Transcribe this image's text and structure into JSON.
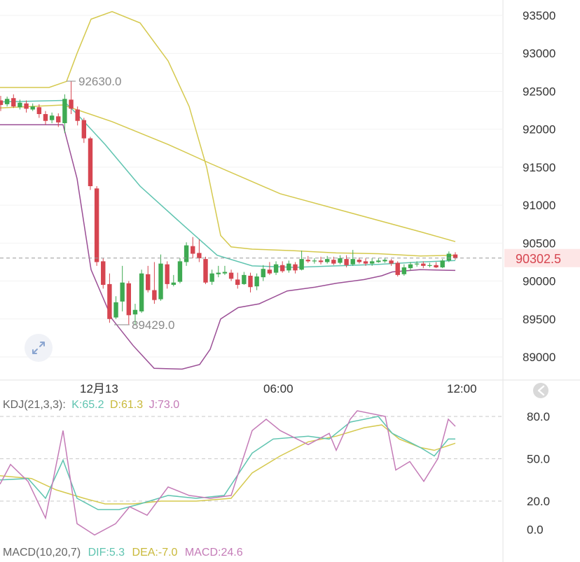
{
  "chart_data": {
    "type": "candlestick",
    "price_axis": {
      "ticks": [
        "93500",
        "93000",
        "92500",
        "92000",
        "91500",
        "91000",
        "90500",
        "90000",
        "89500",
        "89000"
      ],
      "range": [
        88800,
        93700
      ]
    },
    "time_axis": {
      "ticks": [
        "12月13",
        "06:00",
        "12:00"
      ]
    },
    "annotations": {
      "high": "92630.0",
      "low": "89429.0"
    },
    "current_price": {
      "label": "90302.5",
      "value": 90302.5
    },
    "colors": {
      "up": "#3eaa52",
      "down": "#d64550",
      "ma": "#5fc4b0",
      "bb": "#d5c94e",
      "bb_lower": "#9b4f96",
      "kdj_k": "#5fc4b0",
      "kdj_d": "#d5c94e",
      "kdj_j": "#c47bb7",
      "grid": "#c9c9c9"
    },
    "candles": [
      [
        92380,
        92320,
        92440,
        92240
      ],
      [
        92330,
        92400,
        92430,
        92300
      ],
      [
        92410,
        92300,
        92460,
        92280
      ],
      [
        92290,
        92350,
        92390,
        92260
      ],
      [
        92340,
        92270,
        92380,
        92220
      ],
      [
        92260,
        92300,
        92340,
        92240
      ],
      [
        92290,
        92200,
        92330,
        92150
      ],
      [
        92200,
        92110,
        92240,
        92060
      ],
      [
        92120,
        92180,
        92220,
        92080
      ],
      [
        92170,
        92090,
        92210,
        92030
      ],
      [
        92080,
        92400,
        92460,
        91950
      ],
      [
        92390,
        92270,
        92630,
        92200
      ],
      [
        92260,
        92110,
        92300,
        92050
      ],
      [
        92120,
        91880,
        92150,
        91820
      ],
      [
        91880,
        91250,
        91900,
        91200
      ],
      [
        91220,
        90250,
        91250,
        90200
      ],
      [
        90260,
        89950,
        90300,
        89900
      ],
      [
        89960,
        89500,
        90100,
        89450
      ],
      [
        89520,
        89720,
        89800,
        89500
      ],
      [
        89730,
        89980,
        90200,
        89600
      ],
      [
        89970,
        89550,
        90000,
        89430
      ],
      [
        89560,
        89620,
        89700,
        89429
      ],
      [
        89600,
        90100,
        90150,
        89580
      ],
      [
        90090,
        89880,
        90200,
        89850
      ],
      [
        89880,
        89750,
        90250,
        89700
      ],
      [
        89760,
        90230,
        90350,
        89740
      ],
      [
        90220,
        89960,
        90260,
        89900
      ],
      [
        89950,
        89980,
        90080,
        89930
      ],
      [
        89990,
        90260,
        90300,
        89970
      ],
      [
        90250,
        90470,
        90510,
        90200
      ],
      [
        90460,
        90360,
        90580,
        90300
      ],
      [
        90370,
        90300,
        90550,
        90250
      ],
      [
        90290,
        89980,
        90320,
        89960
      ],
      [
        89990,
        90100,
        90150,
        89950
      ],
      [
        90090,
        90110,
        90200,
        90050
      ],
      [
        90100,
        90120,
        90200,
        90080
      ],
      [
        90110,
        90030,
        90150,
        90000
      ],
      [
        90020,
        89950,
        90110,
        89900
      ],
      [
        89960,
        90080,
        90120,
        89950
      ],
      [
        90070,
        89920,
        90110,
        89850
      ],
      [
        89930,
        90060,
        90100,
        89880
      ],
      [
        90050,
        90160,
        90210,
        90000
      ],
      [
        90150,
        90100,
        90250,
        90080
      ],
      [
        90110,
        90220,
        90260,
        90080
      ],
      [
        90210,
        90130,
        90260,
        90110
      ],
      [
        90140,
        90230,
        90270,
        90110
      ],
      [
        90220,
        90140,
        90250,
        90100
      ],
      [
        90150,
        90290,
        90400,
        90140
      ],
      [
        90280,
        90260,
        90330,
        90240
      ],
      [
        90260,
        90270,
        90300,
        90230
      ],
      [
        90270,
        90250,
        90320,
        90220
      ],
      [
        90250,
        90290,
        90330,
        90230
      ],
      [
        90280,
        90230,
        90320,
        90210
      ],
      [
        90240,
        90300,
        90340,
        90220
      ],
      [
        90290,
        90210,
        90340,
        90180
      ],
      [
        90220,
        90290,
        90410,
        90200
      ],
      [
        90280,
        90250,
        90310,
        90230
      ],
      [
        90260,
        90230,
        90300,
        90200
      ],
      [
        90230,
        90260,
        90300,
        90200
      ],
      [
        90250,
        90270,
        90300,
        90240
      ],
      [
        90260,
        90280,
        90310,
        90240
      ],
      [
        90270,
        90230,
        90290,
        90200
      ],
      [
        90240,
        90080,
        90260,
        90060
      ],
      [
        90090,
        90180,
        90220,
        90070
      ],
      [
        90170,
        90220,
        90250,
        90140
      ],
      [
        90220,
        90230,
        90260,
        90190
      ],
      [
        90230,
        90200,
        90260,
        90170
      ],
      [
        90200,
        90210,
        90240,
        90180
      ],
      [
        90210,
        90180,
        90250,
        90170
      ],
      [
        90180,
        90270,
        90290,
        90170
      ],
      [
        90270,
        90360,
        90390,
        90250
      ],
      [
        90350,
        90302.5,
        90380,
        90280
      ]
    ],
    "ma": [
      [
        0,
        92360
      ],
      [
        90,
        92380
      ],
      [
        110,
        92200
      ],
      [
        150,
        91800
      ],
      [
        200,
        91250
      ],
      [
        260,
        90750
      ],
      [
        310,
        90340
      ],
      [
        360,
        90200
      ],
      [
        420,
        90180
      ],
      [
        480,
        90200
      ],
      [
        540,
        90220
      ],
      [
        600,
        90250
      ],
      [
        650,
        90270
      ]
    ],
    "bollinger_upper": [
      [
        0,
        92550
      ],
      [
        70,
        92550
      ],
      [
        95,
        92630
      ],
      [
        110,
        93000
      ],
      [
        130,
        93450
      ],
      [
        160,
        93550
      ],
      [
        200,
        93400
      ],
      [
        240,
        92900
      ],
      [
        270,
        92300
      ],
      [
        295,
        91500
      ],
      [
        315,
        90600
      ],
      [
        330,
        90450
      ],
      [
        360,
        90420
      ],
      [
        420,
        90400
      ],
      [
        480,
        90370
      ],
      [
        540,
        90360
      ],
      [
        600,
        90330
      ],
      [
        650,
        90340
      ]
    ],
    "bollinger_mid": [
      [
        0,
        92280
      ],
      [
        90,
        92320
      ],
      [
        160,
        92100
      ],
      [
        240,
        91800
      ],
      [
        300,
        91550
      ],
      [
        400,
        91150
      ],
      [
        500,
        90900
      ],
      [
        600,
        90650
      ],
      [
        650,
        90520
      ]
    ],
    "bollinger_lower": [
      [
        0,
        92060
      ],
      [
        90,
        92060
      ],
      [
        110,
        91350
      ],
      [
        130,
        90150
      ],
      [
        160,
        89500
      ],
      [
        190,
        89150
      ],
      [
        220,
        88850
      ],
      [
        260,
        88840
      ],
      [
        285,
        88900
      ],
      [
        300,
        89100
      ],
      [
        315,
        89500
      ],
      [
        340,
        89650
      ],
      [
        370,
        89700
      ],
      [
        410,
        89870
      ],
      [
        450,
        89920
      ],
      [
        480,
        89970
      ],
      [
        520,
        90020
      ],
      [
        545,
        90070
      ],
      [
        560,
        90120
      ],
      [
        600,
        90150
      ],
      [
        650,
        90140
      ]
    ],
    "kdj": {
      "label": "KDJ(21,3,3):",
      "K_label": "K:65.2",
      "D_label": "D:61.3",
      "J_label": "J:73.0",
      "axis_ticks": [
        "80.0",
        "50.0",
        "20.0",
        "0.0"
      ],
      "range": [
        -5,
        90
      ],
      "K": [
        [
          0,
          35
        ],
        [
          40,
          36
        ],
        [
          65,
          22
        ],
        [
          90,
          49
        ],
        [
          110,
          22
        ],
        [
          140,
          14
        ],
        [
          170,
          14
        ],
        [
          200,
          18
        ],
        [
          240,
          24
        ],
        [
          280,
          22
        ],
        [
          320,
          24
        ],
        [
          360,
          54
        ],
        [
          390,
          64
        ],
        [
          440,
          66
        ],
        [
          470,
          64
        ],
        [
          500,
          76
        ],
        [
          540,
          80
        ],
        [
          560,
          68
        ],
        [
          600,
          58
        ],
        [
          620,
          52
        ],
        [
          640,
          64
        ],
        [
          650,
          64
        ]
      ],
      "D": [
        [
          0,
          38
        ],
        [
          45,
          36
        ],
        [
          80,
          28
        ],
        [
          120,
          22
        ],
        [
          150,
          18
        ],
        [
          190,
          18
        ],
        [
          230,
          20
        ],
        [
          280,
          20
        ],
        [
          330,
          22
        ],
        [
          360,
          40
        ],
        [
          400,
          52
        ],
        [
          440,
          62
        ],
        [
          480,
          66
        ],
        [
          520,
          72
        ],
        [
          545,
          74
        ],
        [
          570,
          64
        ],
        [
          600,
          58
        ],
        [
          620,
          56
        ],
        [
          650,
          61
        ]
      ],
      "J": [
        [
          0,
          32
        ],
        [
          15,
          46
        ],
        [
          40,
          34
        ],
        [
          65,
          8
        ],
        [
          90,
          70
        ],
        [
          110,
          4
        ],
        [
          135,
          -4
        ],
        [
          165,
          4
        ],
        [
          185,
          16
        ],
        [
          210,
          10
        ],
        [
          240,
          30
        ],
        [
          270,
          24
        ],
        [
          300,
          22
        ],
        [
          330,
          24
        ],
        [
          360,
          70
        ],
        [
          380,
          78
        ],
        [
          400,
          70
        ],
        [
          440,
          60
        ],
        [
          470,
          68
        ],
        [
          480,
          56
        ],
        [
          500,
          78
        ],
        [
          510,
          84
        ],
        [
          550,
          80
        ],
        [
          565,
          42
        ],
        [
          585,
          48
        ],
        [
          605,
          34
        ],
        [
          625,
          50
        ],
        [
          640,
          78
        ],
        [
          650,
          73
        ]
      ]
    },
    "macd": {
      "label": "MACD(10,20,7)",
      "DIF_label": "DIF:5.3",
      "DEA_label": "DEA:-7.0",
      "MACD_label": "MACD:24.6"
    }
  }
}
